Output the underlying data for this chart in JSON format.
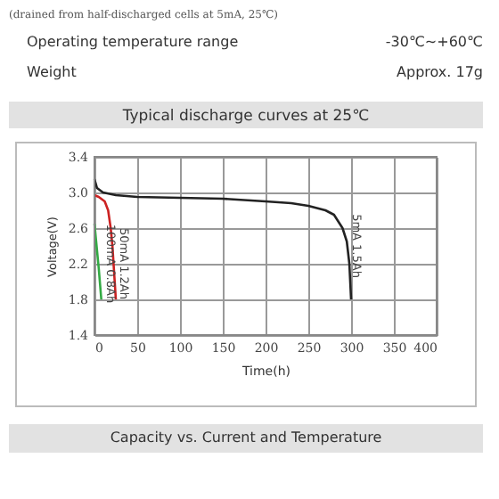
{
  "chart_data": {
    "type": "line",
    "title": "Typical discharge curves at 25℃",
    "xlabel": "Time(h)",
    "ylabel": "Voltage(V)",
    "xlim": [
      0,
      400
    ],
    "xticks": [
      0,
      50,
      100,
      150,
      200,
      250,
      300,
      350,
      400
    ],
    "ylim": [
      1.4,
      3.4
    ],
    "yticks": [
      {
        "value": 1.4,
        "label": "1.4"
      },
      {
        "value": 1.8,
        "label": "1.8"
      },
      {
        "value": 2.2,
        "label": "2.2"
      },
      {
        "value": 2.6,
        "label": "2.6"
      },
      {
        "value": 3.0,
        "label": "3.0"
      },
      {
        "value": 3.4,
        "label": "3.4"
      }
    ],
    "grid": true,
    "line_style": "solid",
    "marker": "none",
    "series": [
      {
        "color": "#222222",
        "x": [
          0,
          3,
          10,
          25,
          50,
          100,
          150,
          200,
          230,
          250,
          270,
          280,
          290,
          295,
          298,
          300
        ],
        "values": [
          3.15,
          3.05,
          3.0,
          2.97,
          2.95,
          2.94,
          2.93,
          2.9,
          2.88,
          2.85,
          2.8,
          2.75,
          2.6,
          2.45,
          2.2,
          1.8
        ]
      },
      {
        "color": "#cc2222",
        "x": [
          0,
          5,
          12,
          16,
          19,
          21,
          23,
          25
        ],
        "values": [
          2.97,
          2.95,
          2.9,
          2.8,
          2.6,
          2.4,
          2.1,
          1.8
        ]
      },
      {
        "color": "#33aa44",
        "x": [
          0,
          2,
          5,
          8
        ],
        "values": [
          2.65,
          2.45,
          2.15,
          1.8
        ]
      }
    ],
    "annotations": [
      "(drained from half-discharged cells at 5mA, 25℃)",
      "Operating temperature range",
      "-30℃~+60℃",
      "Weight",
      "Approx. 17g",
      "Capacity vs. Current and Temperature",
      {
        "text": "5mA 1.5Ah",
        "x": 300,
        "y": 2.4
      },
      {
        "text": "50mA 1.2Ah",
        "x": 28,
        "y": 2.2
      },
      {
        "text": "100mA 0.8Ah",
        "x": 12,
        "y": 2.2
      }
    ]
  }
}
